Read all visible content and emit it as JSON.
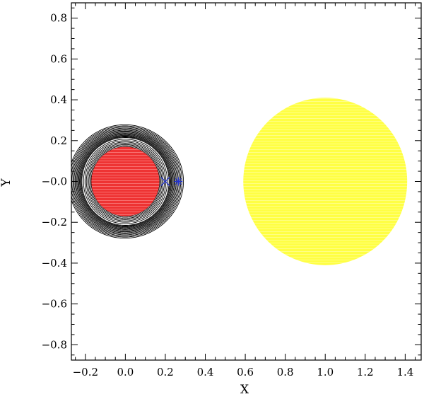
{
  "chart_data": {
    "type": "contour",
    "xlabel": "X",
    "ylabel": "Y",
    "xlim": [
      -0.27,
      1.48
    ],
    "ylim": [
      -0.875,
      0.875
    ],
    "x_ticks": [
      -0.2,
      0.0,
      0.2,
      0.4,
      0.6,
      0.8,
      1.0,
      1.2,
      1.4
    ],
    "x_tick_labels": [
      "−0.2",
      "0.0",
      "0.2",
      "0.4",
      "0.6",
      "0.8",
      "1.0",
      "1.2",
      "1.4"
    ],
    "y_ticks": [
      0.8,
      0.6,
      0.4,
      0.2,
      0.0,
      -0.2,
      -0.4,
      -0.6,
      -0.8
    ],
    "y_tick_labels": [
      "0.8",
      "0.6",
      "0.4",
      "0.2",
      "−0.0",
      "−0.2",
      "−0.4",
      "−0.6",
      "−0.8"
    ],
    "grid": false,
    "bodies": [
      {
        "center": [
          0.0,
          0.0
        ],
        "radius": 0.17,
        "color": "#ee3333"
      },
      {
        "center": [
          1.0,
          0.0
        ],
        "radius": 0.41,
        "color": "#ffff44"
      }
    ],
    "markers": [
      {
        "symbol": "cross-x",
        "x": 0.2,
        "y": 0.0,
        "color": "#2233cc"
      },
      {
        "symbol": "asterisk",
        "x": 0.265,
        "y": 0.0,
        "color": "#2233cc"
      }
    ],
    "contour_color": "#000000"
  }
}
